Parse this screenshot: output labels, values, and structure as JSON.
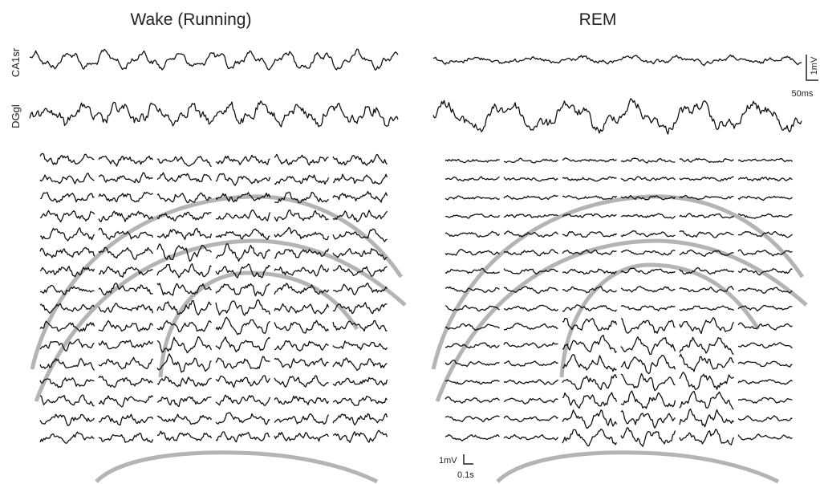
{
  "panels": [
    {
      "title": "Wake (Running)",
      "channels": [
        "CA1sr",
        "DGgl"
      ]
    },
    {
      "title": "REM"
    }
  ],
  "scale_bars": {
    "top": {
      "voltage": "1mV",
      "time": "50ms"
    },
    "bottom": {
      "voltage": "1mV",
      "time": "0.1s"
    }
  }
}
